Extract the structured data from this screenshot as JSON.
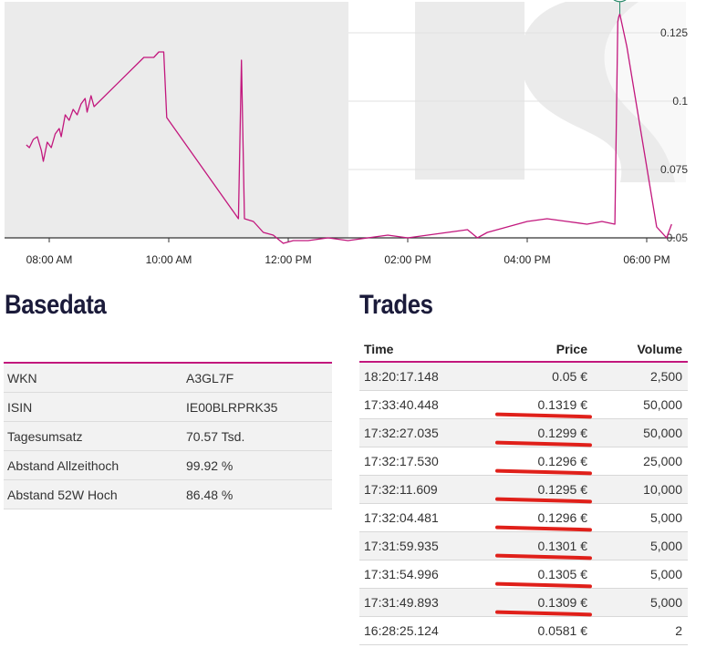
{
  "chart_data": {
    "type": "line",
    "x_labels": [
      "08:00 AM",
      "10:00 AM",
      "12:00 PM",
      "02:00 PM",
      "04:00 PM",
      "06:00 PM"
    ],
    "y_ticks": [
      "0.125",
      "0.1",
      "0.075",
      "0.05"
    ],
    "ylim": [
      0.05,
      0.135
    ],
    "high_marker_label": "H",
    "line_color": "#c2177d",
    "series": [
      {
        "points": [
          [
            "07:37",
            0.084
          ],
          [
            "07:40",
            0.083
          ],
          [
            "07:44",
            0.086
          ],
          [
            "07:48",
            0.087
          ],
          [
            "07:52",
            0.082
          ],
          [
            "07:54",
            0.078
          ],
          [
            "07:58",
            0.085
          ],
          [
            "08:02",
            0.083
          ],
          [
            "08:06",
            0.088
          ],
          [
            "08:10",
            0.09
          ],
          [
            "08:12",
            0.087
          ],
          [
            "08:16",
            0.095
          ],
          [
            "08:20",
            0.093
          ],
          [
            "08:24",
            0.097
          ],
          [
            "08:28",
            0.095
          ],
          [
            "08:32",
            0.099
          ],
          [
            "08:36",
            0.101
          ],
          [
            "08:38",
            0.096
          ],
          [
            "08:42",
            0.102
          ],
          [
            "08:45",
            0.098
          ],
          [
            "09:35",
            0.116
          ],
          [
            "09:45",
            0.116
          ],
          [
            "09:50",
            0.118
          ],
          [
            "09:55",
            0.118
          ],
          [
            "09:58",
            0.094
          ],
          [
            "11:10",
            0.057
          ],
          [
            "11:13",
            0.115
          ],
          [
            "11:16",
            0.057
          ],
          [
            "11:25",
            0.056
          ],
          [
            "11:35",
            0.052
          ],
          [
            "11:45",
            0.051
          ],
          [
            "11:55",
            0.048
          ],
          [
            "12:05",
            0.049
          ],
          [
            "12:20",
            0.049
          ],
          [
            "12:40",
            0.05
          ],
          [
            "13:00",
            0.049
          ],
          [
            "13:20",
            0.05
          ],
          [
            "13:40",
            0.051
          ],
          [
            "14:00",
            0.05
          ],
          [
            "14:20",
            0.051
          ],
          [
            "14:40",
            0.052
          ],
          [
            "15:00",
            0.053
          ],
          [
            "15:10",
            0.05
          ],
          [
            "15:20",
            0.052
          ],
          [
            "15:40",
            0.054
          ],
          [
            "16:00",
            0.056
          ],
          [
            "16:20",
            0.057
          ],
          [
            "16:40",
            0.056
          ],
          [
            "17:00",
            0.055
          ],
          [
            "17:15",
            0.056
          ],
          [
            "17:28",
            0.055
          ],
          [
            "17:31",
            0.129
          ],
          [
            "17:32",
            0.1309
          ],
          [
            "17:33",
            0.1319
          ],
          [
            "17:40",
            0.12
          ],
          [
            "18:10",
            0.054
          ],
          [
            "18:20",
            0.05
          ],
          [
            "18:25",
            0.055
          ]
        ]
      }
    ]
  },
  "basedata": {
    "title": "Basedata",
    "rows": [
      {
        "label": "WKN",
        "value": "A3GL7F"
      },
      {
        "label": "ISIN",
        "value": "IE00BLRPRK35"
      },
      {
        "label": "Tagesumsatz",
        "value": "70.57 Tsd."
      },
      {
        "label": "Abstand Allzeithoch",
        "value": "99.92 %"
      },
      {
        "label": "Abstand 52W Hoch",
        "value": "86.48 %"
      }
    ]
  },
  "trades": {
    "title": "Trades",
    "columns": [
      "Time",
      "Price",
      "Volume"
    ],
    "rows": [
      {
        "time": "18:20:17.148",
        "price": "0.05 €",
        "volume": "2,500",
        "marked": false
      },
      {
        "time": "17:33:40.448",
        "price": "0.1319 €",
        "volume": "50,000",
        "marked": true
      },
      {
        "time": "17:32:27.035",
        "price": "0.1299 €",
        "volume": "50,000",
        "marked": true
      },
      {
        "time": "17:32:17.530",
        "price": "0.1296 €",
        "volume": "25,000",
        "marked": true
      },
      {
        "time": "17:32:11.609",
        "price": "0.1295 €",
        "volume": "10,000",
        "marked": true
      },
      {
        "time": "17:32:04.481",
        "price": "0.1296 €",
        "volume": "5,000",
        "marked": true
      },
      {
        "time": "17:31:59.935",
        "price": "0.1301 €",
        "volume": "5,000",
        "marked": true
      },
      {
        "time": "17:31:54.996",
        "price": "0.1305 €",
        "volume": "5,000",
        "marked": true
      },
      {
        "time": "17:31:49.893",
        "price": "0.1309 €",
        "volume": "5,000",
        "marked": true
      },
      {
        "time": "16:28:25.124",
        "price": "0.0581 €",
        "volume": "2",
        "marked": false
      }
    ]
  }
}
